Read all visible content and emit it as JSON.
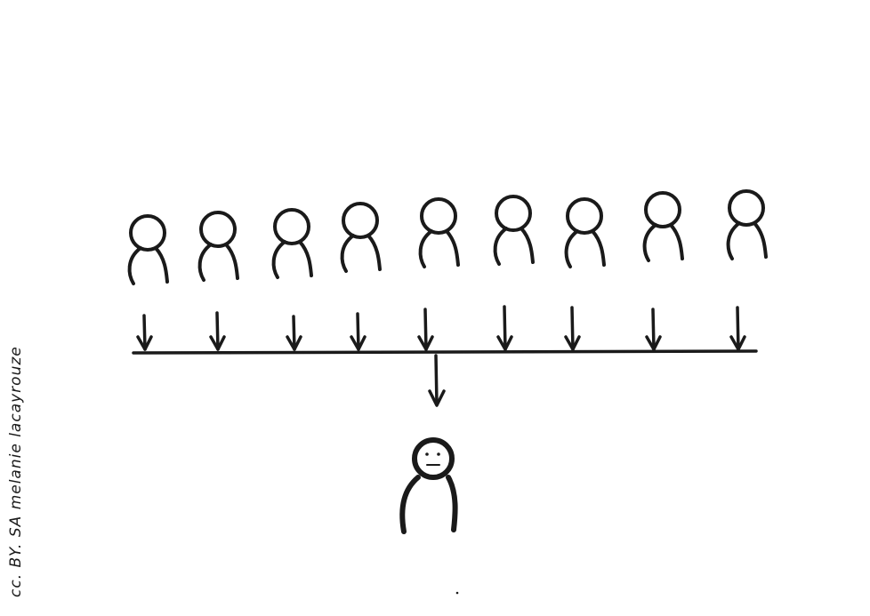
{
  "diagram": {
    "top_people_count": 9,
    "credit": "cc. BY. SA melanie lacayrouze",
    "colors": {
      "ink": "#1a1a1a",
      "background": "#ffffff"
    }
  }
}
